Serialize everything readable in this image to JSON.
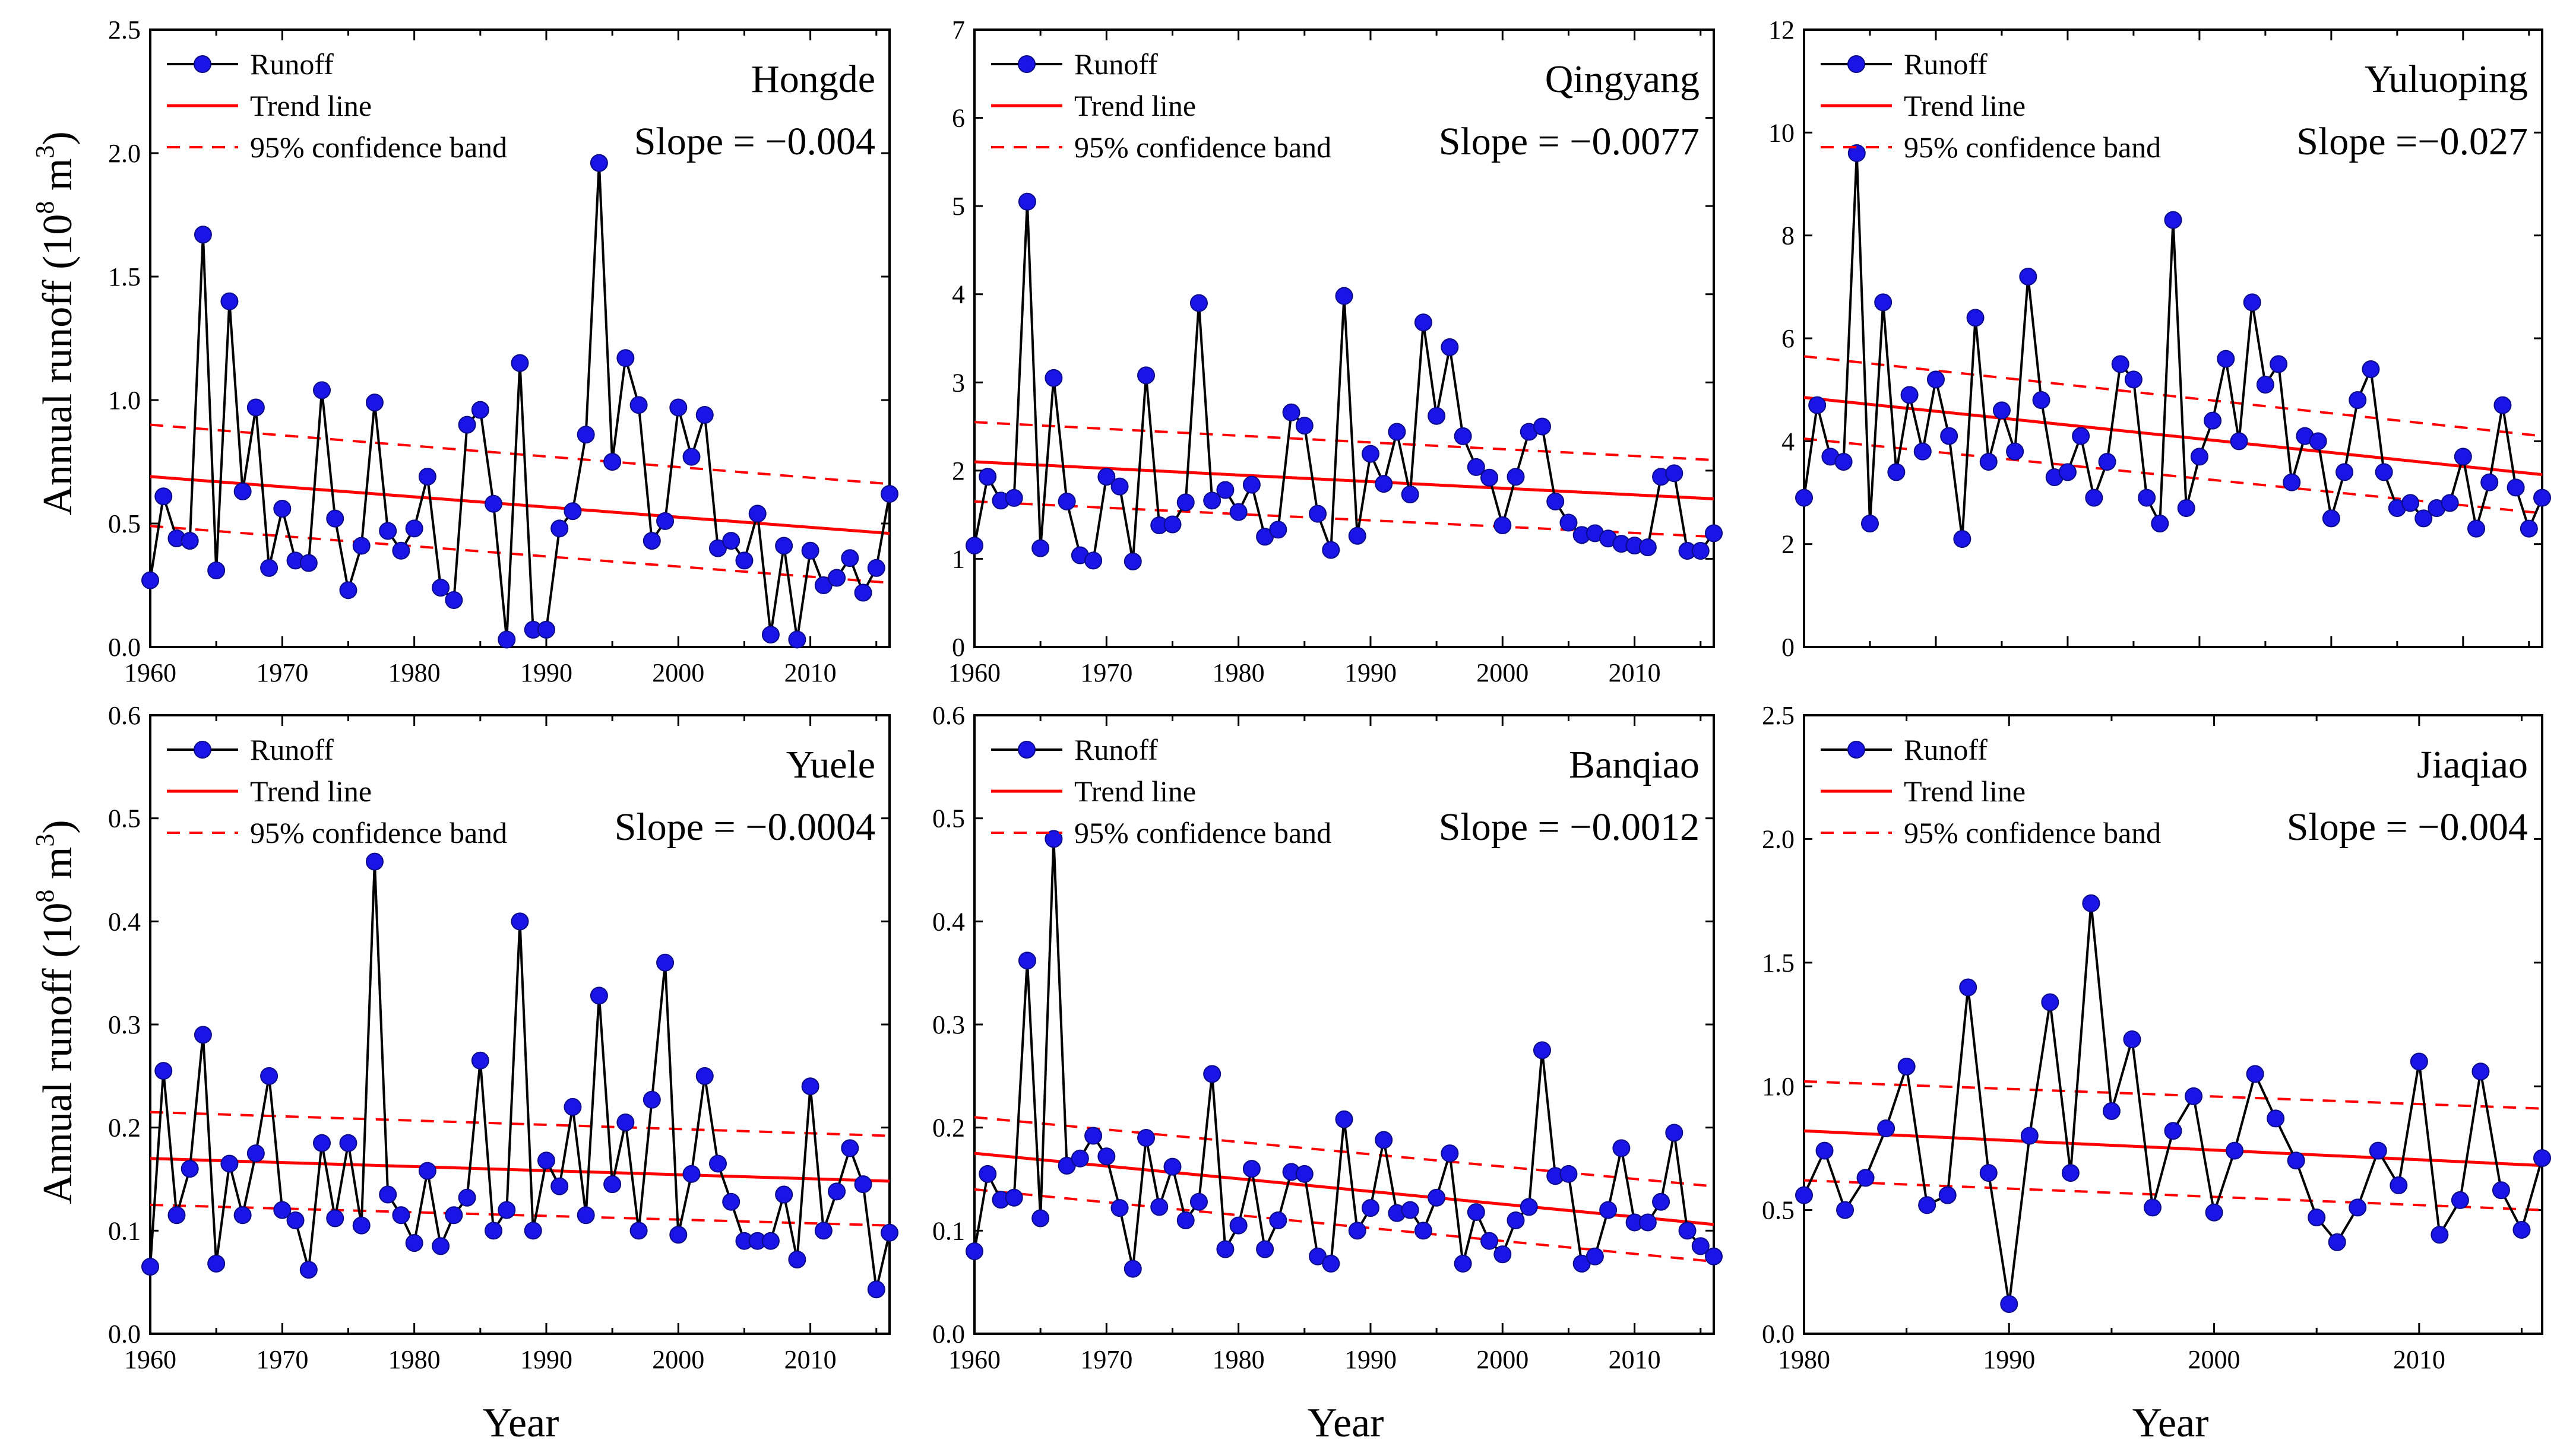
{
  "colors": {
    "runoff_line": "#000000",
    "runoff_marker": "#1a14e6",
    "trend": "#ff0000",
    "confidence": "#ff0000",
    "axis": "#000000"
  },
  "legend": {
    "runoff": "Runoff",
    "trend": "Trend line",
    "confidence": "95% confidence band"
  },
  "xlabel": "Year",
  "ylabel_main": "Annual runoff (10",
  "ylabel_exp_base": "8",
  "ylabel_unit": " m",
  "ylabel_exp_unit": "3",
  "ylabel_close": ")",
  "chart_data": [
    {
      "type": "line",
      "station": "Hongde",
      "slope_label": "Slope = −0.004",
      "xlim": [
        1960,
        2016
      ],
      "ylim": [
        0,
        2.5
      ],
      "xticks": [
        "1960",
        "1970",
        "1980",
        "1990",
        "2000",
        "2010"
      ],
      "yticks": [
        "0.0",
        "0.5",
        "1.0",
        "1.5",
        "2.0",
        "2.5"
      ],
      "legend_position": "top-left",
      "x_start": 1960,
      "values": [
        0.27,
        0.61,
        0.44,
        0.43,
        1.67,
        0.31,
        1.4,
        0.63,
        0.97,
        0.32,
        0.56,
        0.35,
        0.34,
        1.04,
        0.52,
        0.23,
        0.41,
        0.99,
        0.47,
        0.39,
        0.48,
        0.69,
        0.24,
        0.19,
        0.9,
        0.96,
        0.58,
        0.03,
        1.15,
        0.07,
        0.07,
        0.48,
        0.55,
        0.86,
        1.96,
        0.75,
        1.17,
        0.98,
        0.43,
        0.51,
        0.97,
        0.77,
        0.94,
        0.4,
        0.43,
        0.35,
        0.54,
        0.05,
        0.41,
        0.03,
        0.39,
        0.25,
        0.28,
        0.36,
        0.22,
        0.32,
        0.62
      ],
      "trend": [
        0.69,
        0.46
      ],
      "band_upper": [
        0.9,
        0.66
      ],
      "band_lower": [
        0.49,
        0.26
      ]
    },
    {
      "type": "line",
      "station": "Qingyang",
      "slope_label": "Slope = −0.0077",
      "xlim": [
        1960,
        2016
      ],
      "ylim": [
        0,
        7
      ],
      "xticks": [
        "1960",
        "1970",
        "1980",
        "1990",
        "2000",
        "2010"
      ],
      "yticks": [
        "0",
        "1",
        "2",
        "3",
        "4",
        "5",
        "6",
        "7"
      ],
      "legend_position": "top-left",
      "x_start": 1960,
      "values": [
        1.15,
        1.93,
        1.66,
        1.69,
        5.05,
        1.12,
        3.05,
        1.65,
        1.04,
        0.98,
        1.93,
        1.82,
        0.97,
        3.08,
        1.38,
        1.39,
        1.64,
        3.9,
        1.66,
        1.78,
        1.53,
        1.84,
        1.25,
        1.33,
        2.66,
        2.51,
        1.51,
        1.1,
        3.98,
        1.26,
        2.19,
        1.85,
        2.44,
        1.73,
        3.68,
        2.62,
        3.4,
        2.39,
        2.04,
        1.92,
        1.38,
        1.93,
        2.44,
        2.5,
        1.65,
        1.41,
        1.27,
        1.29,
        1.23,
        1.17,
        1.15,
        1.13,
        1.93,
        1.97,
        1.09,
        1.09,
        1.29
      ],
      "trend": [
        2.1,
        1.68
      ],
      "band_upper": [
        2.55,
        2.12
      ],
      "band_lower": [
        1.65,
        1.25
      ]
    },
    {
      "type": "line",
      "station": "Yuluoping",
      "slope_label": "Slope =−0.027",
      "xlim": [
        1960,
        2016
      ],
      "ylim": [
        0,
        12
      ],
      "xticks": [],
      "yticks": [
        "0",
        "2",
        "4",
        "6",
        "8",
        "10",
        "12"
      ],
      "legend_position": "top-left",
      "x_start": 1960,
      "values": [
        2.9,
        4.7,
        3.7,
        3.6,
        9.6,
        2.4,
        6.7,
        3.4,
        4.9,
        3.8,
        5.2,
        4.1,
        2.1,
        6.4,
        3.6,
        4.6,
        3.8,
        7.2,
        4.8,
        3.3,
        3.4,
        4.1,
        2.9,
        3.6,
        5.5,
        5.2,
        2.9,
        2.4,
        8.3,
        2.7,
        3.7,
        4.4,
        5.6,
        4.0,
        6.7,
        5.1,
        5.5,
        3.2,
        4.1,
        4.0,
        2.5,
        3.4,
        4.8,
        5.4,
        3.4,
        2.7,
        2.8,
        2.5,
        2.7,
        2.8,
        3.7,
        2.3,
        3.2,
        4.7,
        3.1,
        2.3,
        2.9
      ],
      "trend": [
        4.85,
        3.35
      ],
      "band_upper": [
        5.65,
        4.1
      ],
      "band_lower": [
        4.05,
        2.6
      ]
    },
    {
      "type": "line",
      "station": "Yuele",
      "slope_label": "Slope = −0.0004",
      "xlim": [
        1960,
        2016
      ],
      "ylim": [
        0,
        0.6
      ],
      "xticks": [
        "1960",
        "1970",
        "1980",
        "1990",
        "2000",
        "2010"
      ],
      "yticks": [
        "0.0",
        "0.1",
        "0.2",
        "0.3",
        "0.4",
        "0.5",
        "0.6"
      ],
      "legend_position": "top-left",
      "x_start": 1960,
      "values": [
        0.065,
        0.255,
        0.115,
        0.16,
        0.29,
        0.068,
        0.165,
        0.115,
        0.175,
        0.25,
        0.12,
        0.11,
        0.062,
        0.185,
        0.112,
        0.185,
        0.105,
        0.458,
        0.135,
        0.115,
        0.088,
        0.158,
        0.085,
        0.115,
        0.132,
        0.265,
        0.1,
        0.12,
        0.4,
        0.1,
        0.168,
        0.143,
        0.22,
        0.115,
        0.328,
        0.145,
        0.205,
        0.1,
        0.227,
        0.36,
        0.096,
        0.155,
        0.25,
        0.165,
        0.128,
        0.09,
        0.09,
        0.09,
        0.135,
        0.072,
        0.24,
        0.1,
        0.138,
        0.18,
        0.145,
        0.043,
        0.098
      ],
      "trend": [
        0.17,
        0.148
      ],
      "band_upper": [
        0.215,
        0.192
      ],
      "band_lower": [
        0.125,
        0.105
      ]
    },
    {
      "type": "line",
      "station": "Banqiao",
      "slope_label": "Slope = −0.0012",
      "xlim": [
        1960,
        2016
      ],
      "ylim": [
        0,
        0.6
      ],
      "xticks": [
        "1960",
        "1970",
        "1980",
        "1990",
        "2000",
        "2010"
      ],
      "yticks": [
        "0.0",
        "0.1",
        "0.2",
        "0.3",
        "0.4",
        "0.5",
        "0.6"
      ],
      "legend_position": "top-left",
      "x_start": 1960,
      "values": [
        0.08,
        0.155,
        0.13,
        0.132,
        0.362,
        0.112,
        0.48,
        0.163,
        0.17,
        0.192,
        0.172,
        0.122,
        0.063,
        0.19,
        0.123,
        0.162,
        0.11,
        0.128,
        0.252,
        0.082,
        0.105,
        0.16,
        0.082,
        0.11,
        0.157,
        0.155,
        0.075,
        0.068,
        0.208,
        0.1,
        0.122,
        0.188,
        0.117,
        0.12,
        0.1,
        0.132,
        0.175,
        0.068,
        0.118,
        0.09,
        0.077,
        0.11,
        0.123,
        0.275,
        0.153,
        0.155,
        0.068,
        0.075,
        0.12,
        0.18,
        0.108,
        0.108,
        0.128,
        0.195,
        0.1,
        0.085,
        0.075
      ],
      "trend": [
        0.175,
        0.106
      ],
      "band_upper": [
        0.21,
        0.143
      ],
      "band_lower": [
        0.14,
        0.07
      ]
    },
    {
      "type": "line",
      "station": "Jiaqiao",
      "slope_label": "Slope = −0.004",
      "xlim": [
        1980,
        2016
      ],
      "ylim": [
        0,
        2.5
      ],
      "xticks": [
        "1980",
        "1990",
        "2000",
        "2010"
      ],
      "yticks": [
        "0.0",
        "0.5",
        "1.0",
        "1.5",
        "2.0",
        "2.5"
      ],
      "legend_position": "top-left",
      "x_start": 1980,
      "values": [
        0.56,
        0.74,
        0.5,
        0.63,
        0.83,
        1.08,
        0.52,
        0.56,
        1.4,
        0.65,
        0.12,
        0.8,
        1.34,
        0.65,
        1.74,
        0.9,
        1.19,
        0.51,
        0.82,
        0.96,
        0.49,
        0.74,
        1.05,
        0.87,
        0.7,
        0.47,
        0.37,
        0.51,
        0.74,
        0.6,
        1.1,
        0.4,
        0.54,
        1.06,
        0.58,
        0.42,
        0.71
      ],
      "trend": [
        0.82,
        0.68
      ],
      "band_upper": [
        1.02,
        0.91
      ],
      "band_lower": [
        0.62,
        0.5
      ]
    }
  ]
}
